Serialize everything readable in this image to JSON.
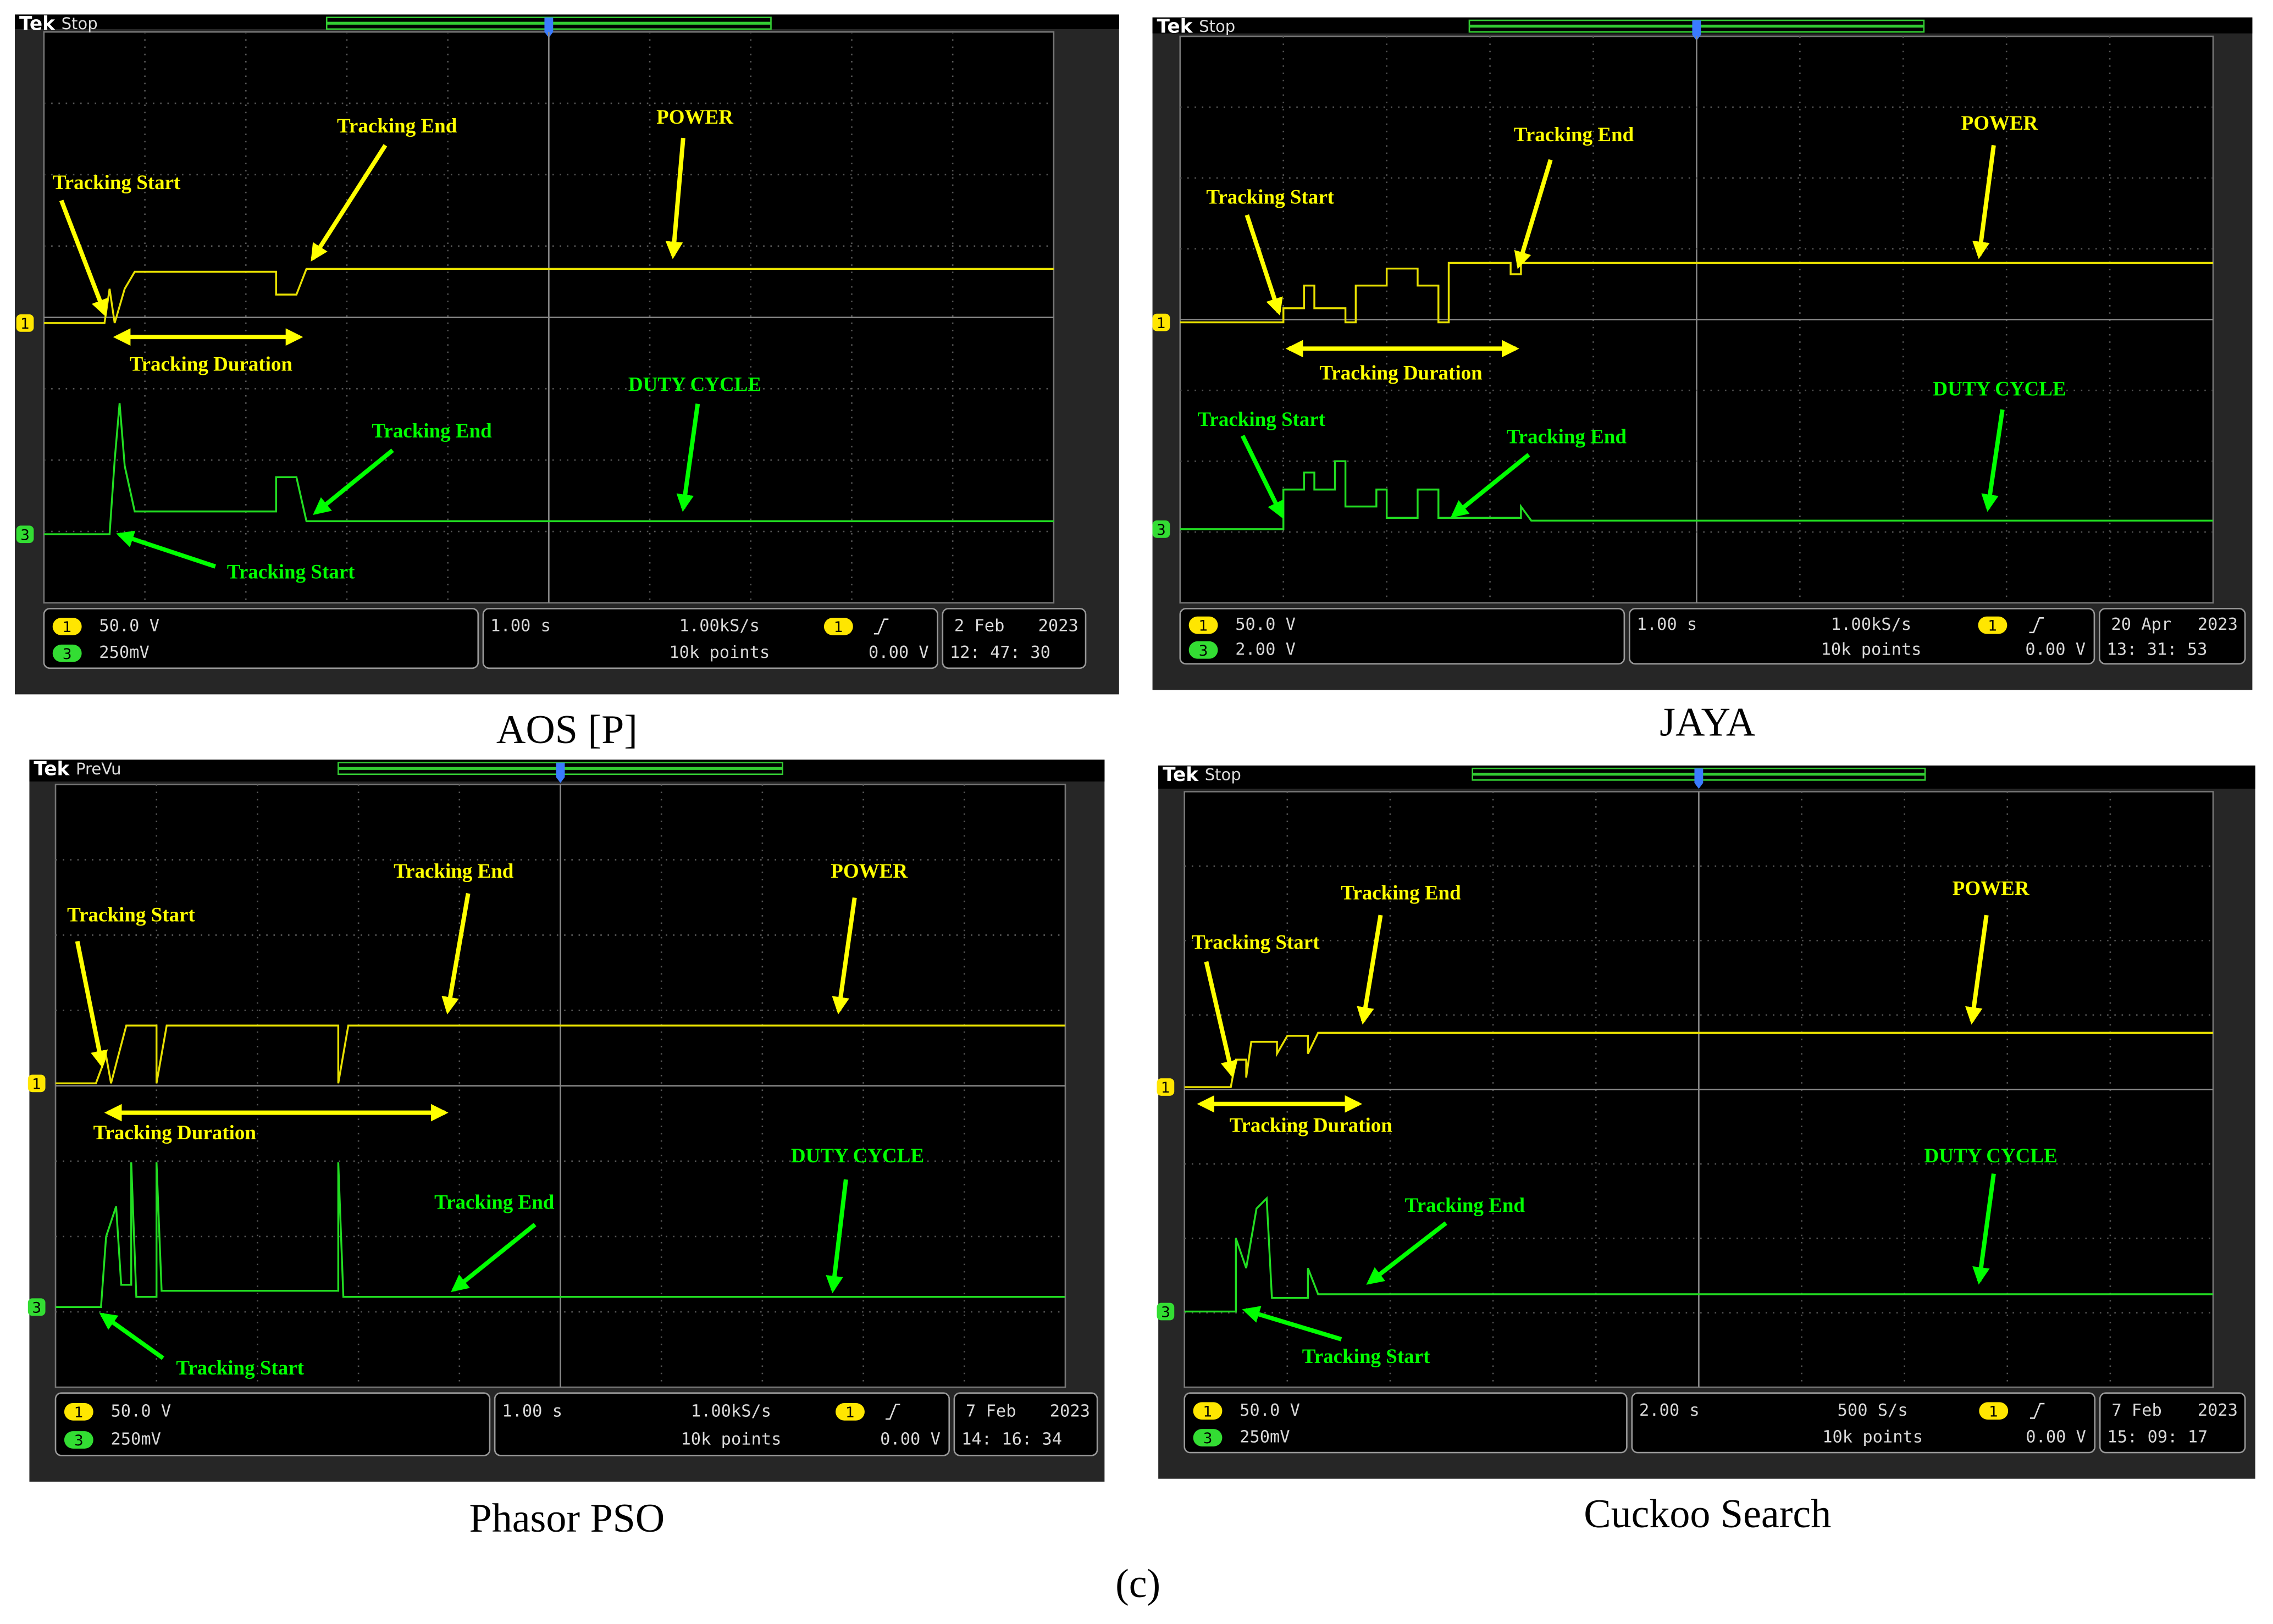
{
  "figure_label": "(c)",
  "panels": [
    {
      "caption": "AOS [P]",
      "brand": "Tek",
      "status": "Stop",
      "annotations": {
        "power_label": "POWER",
        "power_start": "Tracking Start",
        "power_end": "Tracking End",
        "duration": "Tracking Duration",
        "duty_label": "DUTY CYCLE",
        "duty_start": "Tracking Start",
        "duty_end": "Tracking End"
      },
      "readout": {
        "ch1_id": "1",
        "ch1_scale": "50.0 V",
        "ch3_id": "3",
        "ch3_scale": "250mV",
        "timebase": "1.00 s",
        "sample_rate": "1.00kS/s",
        "record": "10k points",
        "trigger_source": "1",
        "trigger_level": "0.00 V",
        "date": "2 Feb",
        "year": "2023",
        "time": "12: 47: 30"
      }
    },
    {
      "caption": "JAYA",
      "brand": "Tek",
      "status": "Stop",
      "annotations": {
        "power_label": "POWER",
        "power_start": "Tracking Start",
        "power_end": "Tracking End",
        "duration": "Tracking Duration",
        "duty_label": "DUTY CYCLE",
        "duty_start": "Tracking Start",
        "duty_end": "Tracking End"
      },
      "readout": {
        "ch1_id": "1",
        "ch1_scale": "50.0 V",
        "ch3_id": "3",
        "ch3_scale": "2.00 V",
        "timebase": "1.00 s",
        "sample_rate": "1.00kS/s",
        "record": "10k points",
        "trigger_source": "1",
        "trigger_level": "0.00 V",
        "date": "20 Apr",
        "year": "2023",
        "time": "13: 31: 53"
      }
    },
    {
      "caption": "Phasor PSO",
      "brand": "Tek",
      "status": "PreVu",
      "annotations": {
        "power_label": "POWER",
        "power_start": "Tracking Start",
        "power_end": "Tracking End",
        "duration": "Tracking Duration",
        "duty_label": "DUTY CYCLE",
        "duty_start": "Tracking Start",
        "duty_end": "Tracking End"
      },
      "readout": {
        "ch1_id": "1",
        "ch1_scale": "50.0 V",
        "ch3_id": "3",
        "ch3_scale": "250mV",
        "timebase": "1.00 s",
        "sample_rate": "1.00kS/s",
        "record": "10k points",
        "trigger_source": "1",
        "trigger_level": "0.00 V",
        "date": "7 Feb",
        "year": "2023",
        "time": "14: 16: 34"
      }
    },
    {
      "caption": "Cuckoo Search",
      "brand": "Tek",
      "status": "Stop",
      "annotations": {
        "power_label": "POWER",
        "power_start": "Tracking Start",
        "power_end": "Tracking End",
        "duration": "Tracking Duration",
        "duty_label": "DUTY CYCLE",
        "duty_start": "Tracking Start",
        "duty_end": "Tracking End"
      },
      "readout": {
        "ch1_id": "1",
        "ch1_scale": "50.0 V",
        "ch3_id": "3",
        "ch3_scale": "250mV",
        "timebase": "2.00 s",
        "sample_rate": "500 S/s",
        "record": "10k points",
        "trigger_source": "1",
        "trigger_level": "0.00 V",
        "date": "7 Feb",
        "year": "2023",
        "time": "15: 09: 17"
      }
    }
  ]
}
